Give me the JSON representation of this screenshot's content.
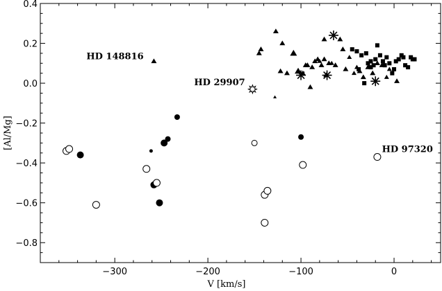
{
  "chart_data": {
    "type": "scatter",
    "title": "",
    "xlabel": "V [km/s]",
    "ylabel": "[Al/Mg]",
    "xlim": [
      -380,
      50
    ],
    "ylim": [
      -0.9,
      0.4
    ],
    "xticks": [
      -300,
      -200,
      -100,
      0
    ],
    "xtick_labels": [
      "−300",
      "−200",
      "−100",
      "0"
    ],
    "yticks": [
      -0.8,
      -0.6,
      -0.4,
      -0.2,
      0.0,
      0.2,
      0.4
    ],
    "ytick_labels": [
      "−0.8",
      "−0.6",
      "−0.4",
      "−0.2",
      "0.0",
      "0.2",
      "0.4"
    ],
    "grid": false,
    "series": [
      {
        "marker": "filled-circle",
        "x": [
          -337,
          -258,
          -252,
          -247,
          -243,
          -233,
          -261,
          -100
        ],
        "y": [
          -0.36,
          -0.51,
          -0.6,
          -0.3,
          -0.28,
          -0.17,
          -0.34,
          -0.27
        ],
        "sizes": [
          5,
          5,
          5,
          5,
          4,
          4,
          2.5,
          4
        ]
      },
      {
        "marker": "open-circle",
        "x": [
          -352,
          -349,
          -320,
          -266,
          -255,
          -150,
          -139,
          -139,
          -136,
          -98,
          -18
        ],
        "y": [
          -0.34,
          -0.33,
          -0.61,
          -0.43,
          -0.5,
          -0.3,
          -0.7,
          -0.56,
          -0.54,
          -0.41,
          -0.37
        ],
        "sizes": [
          5,
          5,
          5,
          5,
          5,
          4,
          5,
          5,
          5,
          5,
          5
        ]
      },
      {
        "marker": "filled-triangle",
        "x": [
          -258,
          -145,
          -127,
          -122,
          -115,
          -108,
          -103,
          -98,
          -95,
          -93,
          -90,
          -88,
          -85,
          -82,
          -80,
          -78,
          -75,
          -73,
          -70,
          -67,
          -63,
          -58,
          -52,
          -48,
          -43,
          -40,
          -37,
          -33,
          -28,
          -23,
          -18,
          -13,
          -8,
          -5,
          3,
          -143,
          -120,
          -75,
          -55
        ],
        "y": [
          0.11,
          0.15,
          0.26,
          0.06,
          0.05,
          0.15,
          0.06,
          0.05,
          0.09,
          0.09,
          -0.02,
          0.08,
          0.11,
          0.12,
          0.11,
          0.09,
          0.12,
          0.04,
          0.1,
          0.1,
          0.09,
          0.22,
          0.07,
          0.13,
          0.05,
          0.08,
          0.06,
          0.03,
          0.08,
          0.05,
          0.1,
          0.09,
          0.03,
          0.07,
          0.01,
          0.17,
          0.2,
          0.22,
          0.17
        ],
        "sizes": [
          4,
          4,
          4,
          4,
          4,
          5,
          5,
          4,
          4,
          4,
          4,
          4,
          4,
          4,
          3.5,
          4,
          4,
          4,
          4,
          3.5,
          4,
          4,
          4,
          3.5,
          3.5,
          3.5,
          4,
          4,
          4,
          4,
          4,
          4,
          3.5,
          3.5,
          4,
          4,
          4,
          4,
          4
        ]
      },
      {
        "marker": "filled-triangle-small",
        "x": [
          -128
        ],
        "y": [
          -0.07
        ],
        "sizes": [
          2.5
        ]
      },
      {
        "marker": "filled-square",
        "x": [
          -45,
          -40,
          -35,
          -30,
          -28,
          -25,
          -22,
          -20,
          -18,
          -15,
          -10,
          -8,
          -5,
          0,
          2,
          5,
          8,
          10,
          12,
          15,
          18,
          20,
          22,
          -38,
          -32,
          -25,
          -12,
          -2
        ],
        "y": [
          0.17,
          0.16,
          0.14,
          0.15,
          0.1,
          0.11,
          0.09,
          0.12,
          0.19,
          0.14,
          0.09,
          0.13,
          0.1,
          0.07,
          0.11,
          0.12,
          0.14,
          0.13,
          0.09,
          0.08,
          0.13,
          0.12,
          0.12,
          0.07,
          0.0,
          0.08,
          0.11,
          0.05
        ],
        "sizes": [
          3,
          3,
          3,
          3,
          3,
          3,
          3,
          3,
          3,
          3,
          3,
          3,
          3,
          3,
          3,
          3,
          3,
          3,
          3,
          3,
          3,
          3,
          3,
          3,
          3,
          3,
          3,
          3
        ]
      },
      {
        "marker": "asterisk",
        "x": [
          -65,
          -72,
          -100,
          -20
        ],
        "y": [
          0.24,
          0.04,
          0.04,
          0.01
        ],
        "sizes": [
          7,
          7,
          7,
          7
        ]
      },
      {
        "marker": "open-star",
        "x": [
          -152
        ],
        "y": [
          -0.03
        ],
        "sizes": [
          6
        ]
      }
    ],
    "annotations": [
      {
        "text": "HD 148816",
        "x": -269,
        "y": 0.12,
        "anchor": "end"
      },
      {
        "text": "HD 29907",
        "x": -160,
        "y": -0.01,
        "anchor": "end"
      },
      {
        "text": "HD 97320",
        "x": -13,
        "y": -0.345,
        "anchor": "start"
      }
    ]
  }
}
